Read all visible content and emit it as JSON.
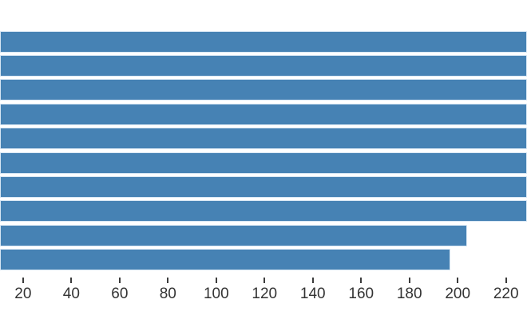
{
  "chart_data": {
    "type": "bar",
    "orientation": "horizontal",
    "title": "",
    "xlabel": "",
    "ylabel": "",
    "x_axis": {
      "tick_interval": 20,
      "ticks": [
        {
          "value": 20,
          "label": "20"
        },
        {
          "value": 40,
          "label": "40"
        },
        {
          "value": 60,
          "label": "60"
        },
        {
          "value": 80,
          "label": "80"
        },
        {
          "value": 100,
          "label": "100"
        },
        {
          "value": 120,
          "label": "120"
        },
        {
          "value": 140,
          "label": "140"
        },
        {
          "value": 160,
          "label": "160"
        },
        {
          "value": 180,
          "label": "180"
        },
        {
          "value": 200,
          "label": "200"
        },
        {
          "value": 220,
          "label": "220"
        }
      ],
      "rightmost_label_partially_clipped": true
    },
    "bars": [
      {
        "value": 222.5,
        "clipped_at_right_edge": true
      },
      {
        "value": 222.5,
        "clipped_at_right_edge": true
      },
      {
        "value": 222.5,
        "clipped_at_right_edge": true
      },
      {
        "value": 222.5,
        "clipped_at_right_edge": true
      },
      {
        "value": 222.5,
        "clipped_at_right_edge": true
      },
      {
        "value": 222.5,
        "clipped_at_right_edge": true
      },
      {
        "value": 222.5,
        "clipped_at_right_edge": true
      },
      {
        "value": 222.5,
        "clipped_at_right_edge": true
      },
      {
        "value": 204,
        "clipped_at_right_edge": false
      },
      {
        "value": 197,
        "clipped_at_right_edge": false
      }
    ],
    "bars_start_at_left_edge": true,
    "legend": {
      "visible": false
    },
    "grid": {
      "visible": false
    },
    "colors": {
      "bar_fill": "#4682b4",
      "bar_edge": "#d8e7f4",
      "tick_mark": "#3c3c3c",
      "tick_label": "#333333",
      "background": "#ffffff"
    }
  }
}
